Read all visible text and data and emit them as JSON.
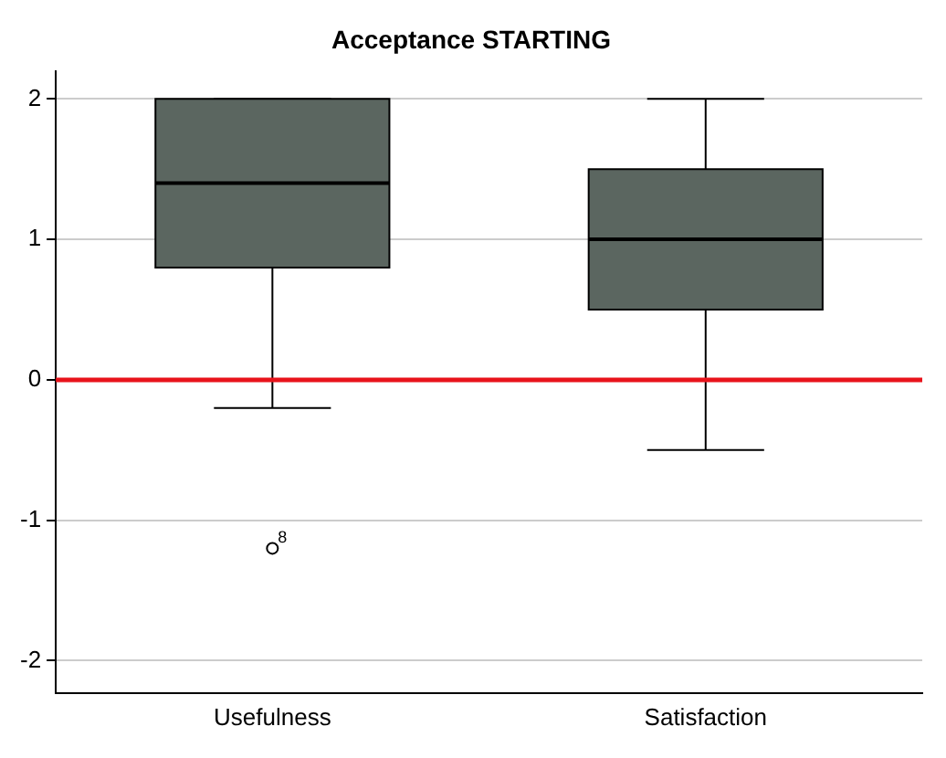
{
  "chart_data": {
    "type": "box",
    "title": "Acceptance STARTING",
    "categories": [
      "Usefulness",
      "Satisfaction"
    ],
    "boxes": [
      {
        "low": -0.2,
        "q1": 0.8,
        "median": 1.4,
        "q3": 2.0,
        "high": 2.0,
        "outliers": [
          -1.2
        ]
      },
      {
        "low": -0.5,
        "q1": 0.5,
        "median": 1.0,
        "q3": 1.5,
        "high": 2.0
      }
    ],
    "color": "#5b6660",
    "ylim": [
      -2.23,
      2.2
    ],
    "yticks": [
      -2,
      -1,
      0,
      1,
      2
    ],
    "grid": "y",
    "ref_lines": [
      {
        "axis": "y",
        "value": 0,
        "color": "#e8131b"
      }
    ],
    "annotations": [
      "8"
    ]
  }
}
